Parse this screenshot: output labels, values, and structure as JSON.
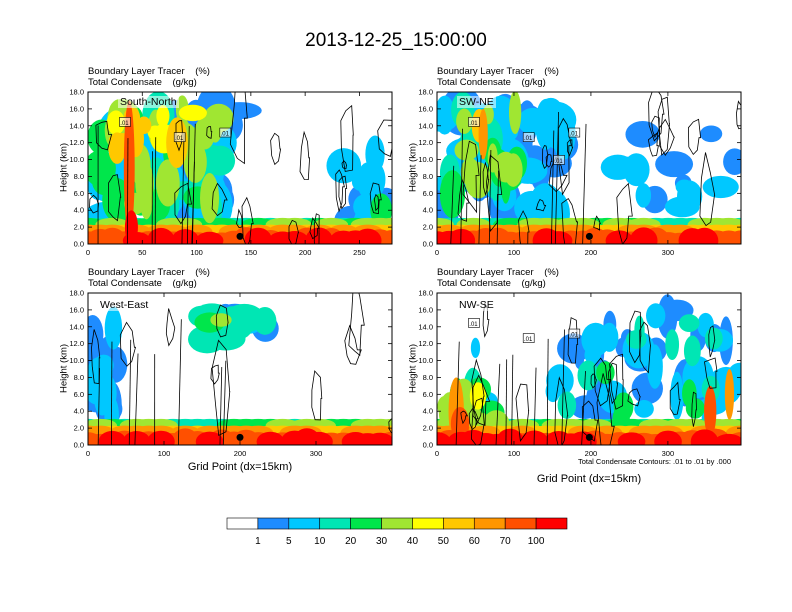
{
  "figure": {
    "title": "2013-12-25_15:00:00",
    "xlabel": "Grid Point (dx=15km)",
    "ylabel": "Height (km)",
    "contour_note": "Total Condensate Contours: .01 to .01 by .000",
    "panel_title_line1": "Boundary Layer Tracer    (%)",
    "panel_title_line2": "Total Condensate    (g/kg)",
    "colors": {
      "background": "#ffffff",
      "levels": [
        "#ffffff",
        "#1e8cff",
        "#00c8ff",
        "#00e6b4",
        "#00e64b",
        "#a0e632",
        "#ffff00",
        "#ffc800",
        "#ff9600",
        "#ff5000",
        "#ff0000"
      ]
    },
    "colorbar_labels": [
      "1",
      "5",
      "10",
      "20",
      "30",
      "40",
      "50",
      "60",
      "70",
      "100"
    ]
  },
  "chart_data": [
    {
      "type": "heatmap",
      "panel": "South-North",
      "title": "Boundary Layer Tracer (%) / Total Condensate (g/kg)",
      "xlabel": "",
      "ylabel": "Height (km)",
      "xlim": [
        0,
        280
      ],
      "ylim": [
        0,
        18
      ],
      "xticks": [
        0,
        50,
        100,
        150,
        200,
        250
      ],
      "yticks": [
        "0.0",
        "2.0",
        "4.0",
        "6.0",
        "8.0",
        "10.0",
        "12.0",
        "14.0",
        "16.0",
        "18.0"
      ],
      "marker_x": 140,
      "contour_labels": [
        ".01",
        ".01",
        ".01"
      ]
    },
    {
      "type": "heatmap",
      "panel": "SW-NE",
      "title": "Boundary Layer Tracer (%) / Total Condensate (g/kg)",
      "xlabel": "",
      "ylabel": "Height (km)",
      "xlim": [
        0,
        395
      ],
      "ylim": [
        0,
        18
      ],
      "xticks": [
        0,
        100,
        200,
        300
      ],
      "yticks": [
        "0.0",
        "2.0",
        "4.0",
        "6.0",
        "8.0",
        "10.0",
        "12.0",
        "14.0",
        "16.0",
        "18.0"
      ],
      "marker_x": 198,
      "contour_labels": [
        ".01",
        ".01",
        ".01",
        ".01"
      ]
    },
    {
      "type": "heatmap",
      "panel": "West-East",
      "title": "Boundary Layer Tracer (%) / Total Condensate (g/kg)",
      "xlabel": "Grid Point (dx=15km)",
      "ylabel": "Height (km)",
      "xlim": [
        0,
        400
      ],
      "ylim": [
        0,
        18
      ],
      "xticks": [
        0,
        100,
        200,
        300
      ],
      "yticks": [
        "0.0",
        "2.0",
        "4.0",
        "6.0",
        "8.0",
        "10.0",
        "12.0",
        "14.0",
        "16.0",
        "18.0"
      ],
      "marker_x": 200,
      "contour_labels": []
    },
    {
      "type": "heatmap",
      "panel": "NW-SE",
      "title": "Boundary Layer Tracer (%) / Total Condensate (g/kg)",
      "xlabel": "Grid Point (dx=15km)",
      "ylabel": "Height (km)",
      "xlim": [
        0,
        395
      ],
      "ylim": [
        0,
        18
      ],
      "xticks": [
        0,
        100,
        200,
        300
      ],
      "yticks": [
        "0.0",
        "2.0",
        "4.0",
        "6.0",
        "8.0",
        "10.0",
        "12.0",
        "14.0",
        "16.0",
        "18.0"
      ],
      "marker_x": 198,
      "contour_labels": [
        ".01",
        ".01",
        ".01"
      ]
    }
  ]
}
